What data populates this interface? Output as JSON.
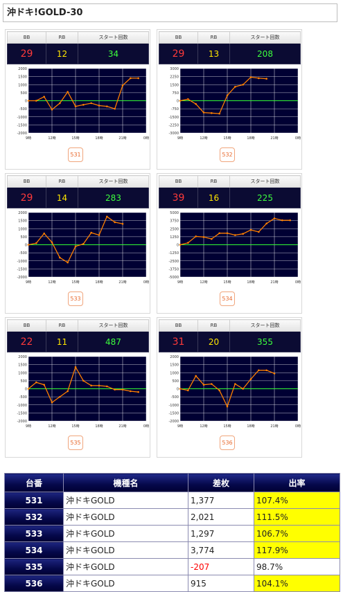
{
  "title": "沖ドキ!GOLD-30",
  "stat_headers": {
    "bb": "BB",
    "rb": "RB",
    "start": "スタート回数"
  },
  "x_tick_labels": [
    "9時",
    "12時",
    "15時",
    "18時",
    "21時",
    "0時"
  ],
  "colors": {
    "plot_bg": "#000033",
    "grid": "#ffffff",
    "zero_line": "#33ff33",
    "series": "#ff8000",
    "bb": "#ff3a3a",
    "rb": "#ffe600",
    "start": "#3dff3d"
  },
  "machines": [
    {
      "no": "531",
      "bb": "29",
      "rb": "12",
      "start": "34"
    },
    {
      "no": "532",
      "bb": "29",
      "rb": "13",
      "start": "208"
    },
    {
      "no": "533",
      "bb": "29",
      "rb": "14",
      "start": "283"
    },
    {
      "no": "534",
      "bb": "39",
      "rb": "16",
      "start": "225"
    },
    {
      "no": "535",
      "bb": "22",
      "rb": "11",
      "start": "487"
    },
    {
      "no": "536",
      "bb": "31",
      "rb": "20",
      "start": "355"
    }
  ],
  "chart_data": [
    {
      "type": "line",
      "machine": "531",
      "x_unit": "hour",
      "xlim": [
        9,
        24
      ],
      "ylim": [
        -2000,
        2000
      ],
      "yticks": [
        2000,
        1500,
        1000,
        500,
        0,
        -500,
        -1000,
        -1500,
        -2000
      ],
      "ytick_labels": [
        "2000",
        "1500",
        "1000",
        "500",
        "0",
        "-500",
        "-1000",
        "-1500",
        "-2000"
      ],
      "x": [
        9,
        10,
        11,
        12,
        13,
        14,
        15,
        16,
        17,
        18,
        19,
        20,
        21,
        22,
        23
      ],
      "y": [
        0,
        0,
        250,
        -550,
        -150,
        550,
        -350,
        -250,
        -150,
        -300,
        -350,
        -500,
        950,
        1400,
        1400
      ]
    },
    {
      "type": "line",
      "machine": "532",
      "x_unit": "hour",
      "xlim": [
        9,
        24
      ],
      "ylim": [
        -3000,
        3000
      ],
      "yticks": [
        3000,
        2250,
        1500,
        750,
        0,
        -750,
        -1500,
        -2250,
        -3000
      ],
      "ytick_labels": [
        "3000",
        "2250",
        "1500",
        "750",
        "0",
        "-750",
        "-1500",
        "-2250",
        "-3000"
      ],
      "x": [
        9,
        10,
        11,
        12,
        13,
        14,
        15,
        16,
        17,
        18,
        19,
        20
      ],
      "y": [
        0,
        150,
        -300,
        -1100,
        -1150,
        -1200,
        500,
        1300,
        1500,
        2200,
        2100,
        2050
      ]
    },
    {
      "type": "line",
      "machine": "533",
      "x_unit": "hour",
      "xlim": [
        9,
        24
      ],
      "ylim": [
        -2000,
        2000
      ],
      "yticks": [
        2000,
        1500,
        1000,
        500,
        0,
        -500,
        -1000,
        -1500,
        -2000
      ],
      "ytick_labels": [
        "2000",
        "1500",
        "1000",
        "500",
        "0",
        "-500",
        "-1000",
        "-1500",
        "-2000"
      ],
      "x": [
        9,
        10,
        11,
        12,
        13,
        14,
        15,
        16,
        17,
        18,
        19,
        20,
        21
      ],
      "y": [
        0,
        100,
        700,
        150,
        -800,
        -1100,
        -100,
        50,
        750,
        600,
        1750,
        1400,
        1300
      ]
    },
    {
      "type": "line",
      "machine": "534",
      "x_unit": "hour",
      "xlim": [
        9,
        24
      ],
      "ylim": [
        -5000,
        5000
      ],
      "yticks": [
        5000,
        3750,
        2500,
        1250,
        0,
        -1250,
        -2500,
        -3750,
        -5000
      ],
      "ytick_labels": [
        "5000",
        "3750",
        "2500",
        "1250",
        "0",
        "-1250",
        "-2500",
        "-3750",
        "-5000"
      ],
      "x": [
        9,
        10,
        11,
        12,
        13,
        14,
        15,
        16,
        17,
        18,
        19,
        20,
        21,
        22,
        23
      ],
      "y": [
        0,
        300,
        1300,
        1200,
        900,
        1800,
        1800,
        1500,
        1700,
        2300,
        2000,
        3300,
        4100,
        3800,
        3800
      ]
    },
    {
      "type": "line",
      "machine": "535",
      "x_unit": "hour",
      "xlim": [
        9,
        24
      ],
      "ylim": [
        -2000,
        2000
      ],
      "yticks": [
        2000,
        1500,
        1000,
        500,
        0,
        -500,
        -1000,
        -1500,
        -2000
      ],
      "ytick_labels": [
        "2000",
        "1500",
        "1000",
        "500",
        "0",
        "-500",
        "-1000",
        "-1500",
        "-2000"
      ],
      "x": [
        9,
        10,
        11,
        12,
        13,
        14,
        15,
        16,
        17,
        18,
        19,
        20,
        21,
        22,
        23
      ],
      "y": [
        0,
        400,
        250,
        -850,
        -500,
        -150,
        1350,
        500,
        200,
        200,
        150,
        -50,
        -50,
        -150,
        -200
      ]
    },
    {
      "type": "line",
      "machine": "536",
      "x_unit": "hour",
      "xlim": [
        9,
        24
      ],
      "ylim": [
        -2000,
        2000
      ],
      "yticks": [
        2000,
        1500,
        1000,
        500,
        0,
        -500,
        -1000,
        -1500,
        -2000
      ],
      "ytick_labels": [
        "2000",
        "1500",
        "1000",
        "500",
        "0",
        "-500",
        "-1000",
        "-1500",
        "-2000"
      ],
      "x": [
        9,
        10,
        11,
        12,
        13,
        14,
        15,
        16,
        17,
        18,
        19,
        20,
        21
      ],
      "y": [
        0,
        -100,
        800,
        250,
        300,
        -100,
        -1100,
        300,
        0,
        600,
        1150,
        1150,
        950
      ]
    }
  ],
  "summary": {
    "headers": [
      "台番",
      "機種名",
      "差枚",
      "出率"
    ],
    "rows": [
      {
        "no": "531",
        "name": "沖ドキGOLD",
        "diff": "1,377",
        "rate": "107.4%",
        "negative": false,
        "highlight": true
      },
      {
        "no": "532",
        "name": "沖ドキGOLD",
        "diff": "2,021",
        "rate": "111.5%",
        "negative": false,
        "highlight": true
      },
      {
        "no": "533",
        "name": "沖ドキGOLD",
        "diff": "1,297",
        "rate": "106.7%",
        "negative": false,
        "highlight": true
      },
      {
        "no": "534",
        "name": "沖ドキGOLD",
        "diff": "3,774",
        "rate": "117.9%",
        "negative": false,
        "highlight": true
      },
      {
        "no": "535",
        "name": "沖ドキGOLD",
        "diff": "-207",
        "rate": "98.7%",
        "negative": true,
        "highlight": false
      },
      {
        "no": "536",
        "name": "沖ドキGOLD",
        "diff": "915",
        "rate": "104.1%",
        "negative": false,
        "highlight": true
      }
    ]
  }
}
